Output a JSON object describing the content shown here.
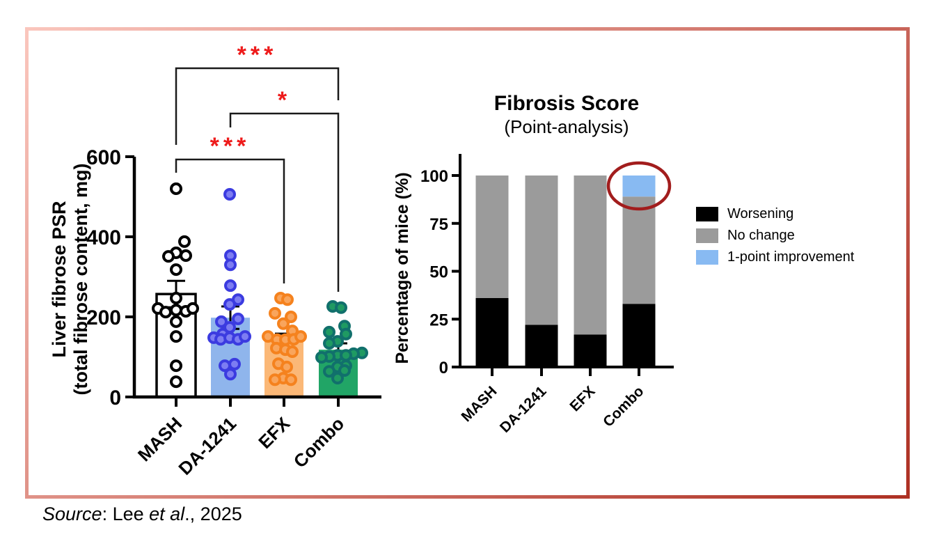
{
  "figure": {
    "border_gradient_start": "#FAC6BD",
    "border_gradient_end": "#AE3124",
    "background": "#FFFFFF"
  },
  "source_note": {
    "word_source": "Source",
    "middle": ": Lee ",
    "etal": "et al",
    "tail": "., 2025"
  },
  "chart_data": [
    {
      "type": "bar",
      "subtype": "bar-with-scatter-and-sem",
      "ylabel_line1": "Liver fibrose PSR",
      "ylabel_line2": "(total fibrose content, mg)",
      "ylim": [
        0,
        600
      ],
      "yticks": [
        0,
        200,
        400,
        600
      ],
      "categories": [
        "MASH",
        "DA-1241",
        "EFX",
        "Combo"
      ],
      "bar_means": [
        257,
        198,
        139,
        118
      ],
      "bar_sems": [
        33,
        28,
        19,
        16
      ],
      "bar_fills": [
        "#FFFFFF",
        "#8FB5EC",
        "#FBB877",
        "#21A566"
      ],
      "bar_strokes": [
        "#000000",
        "none",
        "none",
        "none"
      ],
      "point_rings": [
        "#000000",
        "#3B3BE0",
        "#F5821E",
        "#11706C"
      ],
      "point_fills": [
        "#FFFFFF",
        "#7D7DF2",
        "#F9A55C",
        "#1F9A62"
      ],
      "points_mg": [
        [
          [
            520,
            0
          ],
          [
            388,
            12
          ],
          [
            360,
            0
          ],
          [
            353,
            14
          ],
          [
            351,
            -11
          ],
          [
            318,
            0
          ],
          [
            247,
            0
          ],
          [
            221,
            -26
          ],
          [
            212,
            -15
          ],
          [
            217,
            0
          ],
          [
            214,
            14
          ],
          [
            221,
            24
          ],
          [
            188,
            0
          ],
          [
            151,
            0
          ],
          [
            78,
            0
          ],
          [
            38,
            0
          ]
        ],
        [
          [
            506,
            -1
          ],
          [
            353,
            0
          ],
          [
            330,
            0
          ],
          [
            278,
            0
          ],
          [
            243,
            11
          ],
          [
            231,
            -1
          ],
          [
            195,
            11
          ],
          [
            188,
            -13
          ],
          [
            174,
            -1
          ],
          [
            157,
            -11
          ],
          [
            148,
            -24
          ],
          [
            144,
            -14
          ],
          [
            148,
            -1
          ],
          [
            144,
            11
          ],
          [
            151,
            21
          ],
          [
            82,
            6
          ],
          [
            78,
            -8
          ],
          [
            57,
            0
          ]
        ],
        [
          [
            247,
            -5
          ],
          [
            243,
            5
          ],
          [
            209,
            -13
          ],
          [
            200,
            10
          ],
          [
            183,
            -1
          ],
          [
            165,
            12
          ],
          [
            151,
            -23
          ],
          [
            143,
            -10
          ],
          [
            143,
            2
          ],
          [
            144,
            14
          ],
          [
            151,
            24
          ],
          [
            122,
            -11
          ],
          [
            118,
            2
          ],
          [
            113,
            12
          ],
          [
            83,
            -8
          ],
          [
            75,
            4
          ],
          [
            47,
            -1
          ],
          [
            43,
            -13
          ],
          [
            43,
            10
          ]
        ],
        [
          [
            226,
            -8
          ],
          [
            223,
            4
          ],
          [
            177,
            9
          ],
          [
            162,
            -13
          ],
          [
            157,
            11
          ],
          [
            139,
            -1
          ],
          [
            134,
            -13
          ],
          [
            110,
            34
          ],
          [
            108,
            22
          ],
          [
            104,
            -1
          ],
          [
            104,
            11
          ],
          [
            101,
            -13
          ],
          [
            99,
            -24
          ],
          [
            78,
            11
          ],
          [
            75,
            -1
          ],
          [
            66,
            9
          ],
          [
            64,
            -13
          ],
          [
            47,
            -1
          ]
        ]
      ],
      "significance": [
        {
          "label": "***",
          "from": "MASH",
          "to": "Combo"
        },
        {
          "label": "*",
          "from": "DA-1241",
          "to": "Combo"
        },
        {
          "label": "***",
          "from": "MASH",
          "to": "EFX"
        }
      ],
      "sig_color": "#EE1B1B"
    },
    {
      "type": "bar",
      "subtype": "stacked-percent",
      "title": "Fibrosis Score",
      "subtitle": "(Point-analysis)",
      "ylabel": "Percentage of mice (%)",
      "ylim": [
        0,
        100
      ],
      "yticks": [
        0,
        25,
        50,
        75,
        100
      ],
      "categories": [
        "MASH",
        "DA-1241",
        "EFX",
        "Combo"
      ],
      "series": [
        {
          "name": "Worsening",
          "color": "#000000",
          "values": [
            36,
            22,
            17,
            33
          ]
        },
        {
          "name": "No change",
          "color": "#9B9B9B",
          "values": [
            64,
            78,
            83,
            56
          ]
        },
        {
          "name": "1-point improvement",
          "color": "#88BAF2",
          "values": [
            0,
            0,
            0,
            11
          ]
        }
      ],
      "legend_position": "right",
      "annotation": {
        "shape": "ellipse",
        "target": "Combo top segment",
        "color": "#A21D1D"
      }
    }
  ]
}
